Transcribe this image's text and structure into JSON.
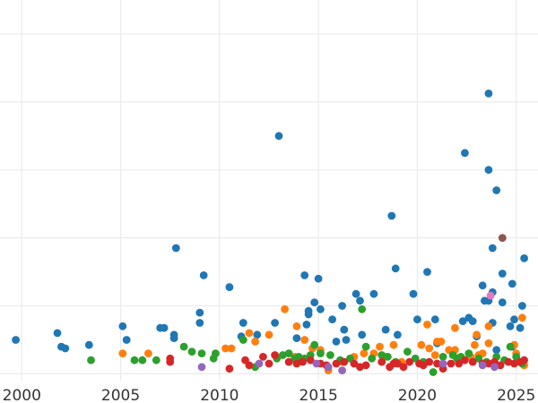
{
  "chart_data": {
    "type": "scatter",
    "title": "",
    "xlabel": "",
    "ylabel": "",
    "xlim": [
      1998.9,
      2026.1
    ],
    "ylim": [
      -0.2,
      11.0
    ],
    "x_ticks": [
      2000,
      2005,
      2010,
      2015,
      2020,
      2025
    ],
    "x_tick_labels": [
      "2000",
      "2005",
      "2010",
      "2015",
      "2020",
      "2025"
    ],
    "y_gridlines": [
      0,
      2,
      4,
      6,
      8,
      10
    ],
    "y_tick_labels_visible": false,
    "grid": true,
    "legend": "none",
    "series": [
      {
        "color": "#1f77b4",
        "points": [
          [
            1999.7,
            1.0
          ],
          [
            2001.8,
            1.2
          ],
          [
            2002.0,
            0.8
          ],
          [
            2002.2,
            0.75
          ],
          [
            2003.4,
            0.85
          ],
          [
            2005.1,
            1.4
          ],
          [
            2005.3,
            1.0
          ],
          [
            2007.0,
            1.35
          ],
          [
            2007.2,
            1.35
          ],
          [
            2007.7,
            1.05
          ],
          [
            2007.7,
            1.15
          ],
          [
            2007.8,
            3.7
          ],
          [
            2009.0,
            1.5
          ],
          [
            2009.0,
            1.8
          ],
          [
            2009.2,
            2.9
          ],
          [
            2010.5,
            2.55
          ],
          [
            2011.1,
            1.1
          ],
          [
            2011.2,
            1.5
          ],
          [
            2011.9,
            1.15
          ],
          [
            2012.8,
            1.5
          ],
          [
            2013.0,
            7.0
          ],
          [
            2013.9,
            1.05
          ],
          [
            2014.3,
            2.9
          ],
          [
            2014.4,
            1.45
          ],
          [
            2014.5,
            1.75
          ],
          [
            2014.5,
            1.85
          ],
          [
            2014.8,
            2.1
          ],
          [
            2015.0,
            2.8
          ],
          [
            2015.1,
            1.9
          ],
          [
            2015.7,
            1.6
          ],
          [
            2015.9,
            0.95
          ],
          [
            2016.2,
            2.0
          ],
          [
            2016.3,
            1.3
          ],
          [
            2016.4,
            1.0
          ],
          [
            2016.9,
            2.35
          ],
          [
            2017.1,
            2.15
          ],
          [
            2017.2,
            1.15
          ],
          [
            2017.8,
            2.35
          ],
          [
            2018.4,
            1.3
          ],
          [
            2018.7,
            4.65
          ],
          [
            2018.9,
            3.1
          ],
          [
            2019.0,
            1.15
          ],
          [
            2019.8,
            2.35
          ],
          [
            2020.0,
            1.6
          ],
          [
            2020.5,
            3.0
          ],
          [
            2020.9,
            1.6
          ],
          [
            2021.0,
            0.9
          ],
          [
            2022.3,
            1.55
          ],
          [
            2022.4,
            6.5
          ],
          [
            2022.6,
            1.65
          ],
          [
            2022.8,
            1.55
          ],
          [
            2023.0,
            1.1
          ],
          [
            2023.3,
            2.6
          ],
          [
            2023.4,
            2.15
          ],
          [
            2023.6,
            8.25
          ],
          [
            2023.6,
            6.0
          ],
          [
            2023.6,
            2.15
          ],
          [
            2023.8,
            3.7
          ],
          [
            2023.8,
            1.5
          ],
          [
            2023.8,
            2.4
          ],
          [
            2024.0,
            5.4
          ],
          [
            2024.0,
            0.7
          ],
          [
            2024.3,
            2.95
          ],
          [
            2024.3,
            2.1
          ],
          [
            2024.7,
            1.4
          ],
          [
            2024.8,
            2.65
          ],
          [
            2024.9,
            1.6
          ],
          [
            2025.3,
            2.0
          ],
          [
            2025.4,
            3.4
          ],
          [
            2025.2,
            1.35
          ],
          [
            2024.8,
            0.8
          ]
        ]
      },
      {
        "color": "#ff7f0e",
        "points": [
          [
            2005.1,
            0.6
          ],
          [
            2006.4,
            0.6
          ],
          [
            2010.3,
            0.75
          ],
          [
            2010.6,
            0.75
          ],
          [
            2011.5,
            1.2
          ],
          [
            2011.8,
            0.95
          ],
          [
            2012.5,
            1.15
          ],
          [
            2013.3,
            1.9
          ],
          [
            2013.8,
            0.5
          ],
          [
            2013.9,
            1.4
          ],
          [
            2014.3,
            1.0
          ],
          [
            2014.7,
            0.75
          ],
          [
            2015.1,
            0.7
          ],
          [
            2015.5,
            0.1
          ],
          [
            2016.2,
            0.35
          ],
          [
            2017.3,
            0.6
          ],
          [
            2017.8,
            0.6
          ],
          [
            2018.1,
            0.8
          ],
          [
            2018.4,
            0.5
          ],
          [
            2018.8,
            0.85
          ],
          [
            2020.2,
            0.85
          ],
          [
            2020.5,
            1.45
          ],
          [
            2020.6,
            0.75
          ],
          [
            2020.9,
            0.55
          ],
          [
            2021.0,
            0.95
          ],
          [
            2021.2,
            0.95
          ],
          [
            2021.6,
            0.7
          ],
          [
            2021.9,
            0.7
          ],
          [
            2021.9,
            1.35
          ],
          [
            2022.7,
            0.5
          ],
          [
            2022.9,
            0.85
          ],
          [
            2023.0,
            1.15
          ],
          [
            2023.1,
            0.55
          ],
          [
            2023.3,
            0.6
          ],
          [
            2023.6,
            1.4
          ],
          [
            2023.6,
            0.9
          ],
          [
            2024.9,
            0.85
          ],
          [
            2025.0,
            0.6
          ],
          [
            2025.3,
            1.65
          ],
          [
            2025.4,
            0.25
          ],
          [
            2019.2,
            0.35
          ],
          [
            2016.8,
            0.5
          ]
        ]
      },
      {
        "color": "#2ca02c",
        "points": [
          [
            2003.5,
            0.4
          ],
          [
            2005.7,
            0.4
          ],
          [
            2006.1,
            0.4
          ],
          [
            2006.8,
            0.4
          ],
          [
            2008.2,
            0.8
          ],
          [
            2008.6,
            0.65
          ],
          [
            2009.1,
            0.6
          ],
          [
            2009.7,
            0.45
          ],
          [
            2009.8,
            0.6
          ],
          [
            2011.2,
            1.0
          ],
          [
            2011.8,
            0.2
          ],
          [
            2012.9,
            0.45
          ],
          [
            2013.2,
            0.55
          ],
          [
            2013.5,
            0.6
          ],
          [
            2013.8,
            0.45
          ],
          [
            2014.0,
            0.5
          ],
          [
            2014.3,
            0.45
          ],
          [
            2014.6,
            0.55
          ],
          [
            2014.8,
            0.85
          ],
          [
            2015.1,
            0.6
          ],
          [
            2015.6,
            0.55
          ],
          [
            2016.1,
            0.4
          ],
          [
            2016.6,
            0.45
          ],
          [
            2017.2,
            1.9
          ],
          [
            2017.4,
            0.8
          ],
          [
            2017.7,
            0.45
          ],
          [
            2018.2,
            0.55
          ],
          [
            2018.5,
            0.5
          ],
          [
            2018.9,
            0.35
          ],
          [
            2019.5,
            0.65
          ],
          [
            2019.9,
            0.45
          ],
          [
            2020.3,
            0.35
          ],
          [
            2020.8,
            0.05
          ],
          [
            2021.3,
            0.5
          ],
          [
            2021.8,
            0.55
          ],
          [
            2022.0,
            0.45
          ],
          [
            2022.6,
            0.6
          ],
          [
            2023.1,
            0.45
          ],
          [
            2023.5,
            0.35
          ],
          [
            2024.0,
            0.5
          ],
          [
            2024.4,
            0.4
          ],
          [
            2024.7,
            0.8
          ],
          [
            2025.0,
            0.5
          ],
          [
            2025.3,
            0.3
          ],
          [
            2022.2,
            0.5
          ]
        ]
      },
      {
        "color": "#d62728",
        "points": [
          [
            2007.5,
            0.45
          ],
          [
            2007.5,
            0.35
          ],
          [
            2010.5,
            0.15
          ],
          [
            2011.3,
            0.4
          ],
          [
            2011.5,
            0.25
          ],
          [
            2012.2,
            0.5
          ],
          [
            2012.5,
            0.3
          ],
          [
            2012.8,
            0.55
          ],
          [
            2013.9,
            0.3
          ],
          [
            2014.2,
            0.35
          ],
          [
            2014.6,
            0.4
          ],
          [
            2015.1,
            0.3
          ],
          [
            2015.4,
            0.25
          ],
          [
            2015.9,
            0.3
          ],
          [
            2016.3,
            0.35
          ],
          [
            2016.8,
            0.3
          ],
          [
            2017.1,
            0.2
          ],
          [
            2017.4,
            0.25
          ],
          [
            2018.2,
            0.35
          ],
          [
            2018.6,
            0.2
          ],
          [
            2018.8,
            0.3
          ],
          [
            2019.0,
            0.3
          ],
          [
            2019.3,
            0.2
          ],
          [
            2019.6,
            0.35
          ],
          [
            2020.1,
            0.3
          ],
          [
            2020.3,
            0.25
          ],
          [
            2020.6,
            0.35
          ],
          [
            2021.0,
            0.3
          ],
          [
            2021.3,
            0.15
          ],
          [
            2021.7,
            0.3
          ],
          [
            2022.1,
            0.3
          ],
          [
            2022.4,
            0.4
          ],
          [
            2022.8,
            0.35
          ],
          [
            2023.3,
            0.3
          ],
          [
            2023.6,
            0.3
          ],
          [
            2023.9,
            0.35
          ],
          [
            2024.2,
            0.25
          ],
          [
            2024.6,
            0.35
          ],
          [
            2024.9,
            0.3
          ],
          [
            2025.2,
            0.35
          ],
          [
            2025.4,
            0.4
          ],
          [
            2013.5,
            0.35
          ]
        ]
      },
      {
        "color": "#9467bd",
        "points": [
          [
            2009.1,
            0.2
          ],
          [
            2012.0,
            0.3
          ],
          [
            2014.9,
            0.3
          ],
          [
            2015.5,
            0.2
          ],
          [
            2016.2,
            0.1
          ],
          [
            2021.3,
            0.3
          ],
          [
            2023.3,
            0.25
          ],
          [
            2023.9,
            0.2
          ]
        ]
      },
      {
        "color": "#8c564b",
        "points": [
          [
            2024.3,
            4.0
          ]
        ]
      },
      {
        "color": "#e377c2",
        "points": [
          [
            2023.7,
            2.3
          ]
        ]
      }
    ]
  }
}
